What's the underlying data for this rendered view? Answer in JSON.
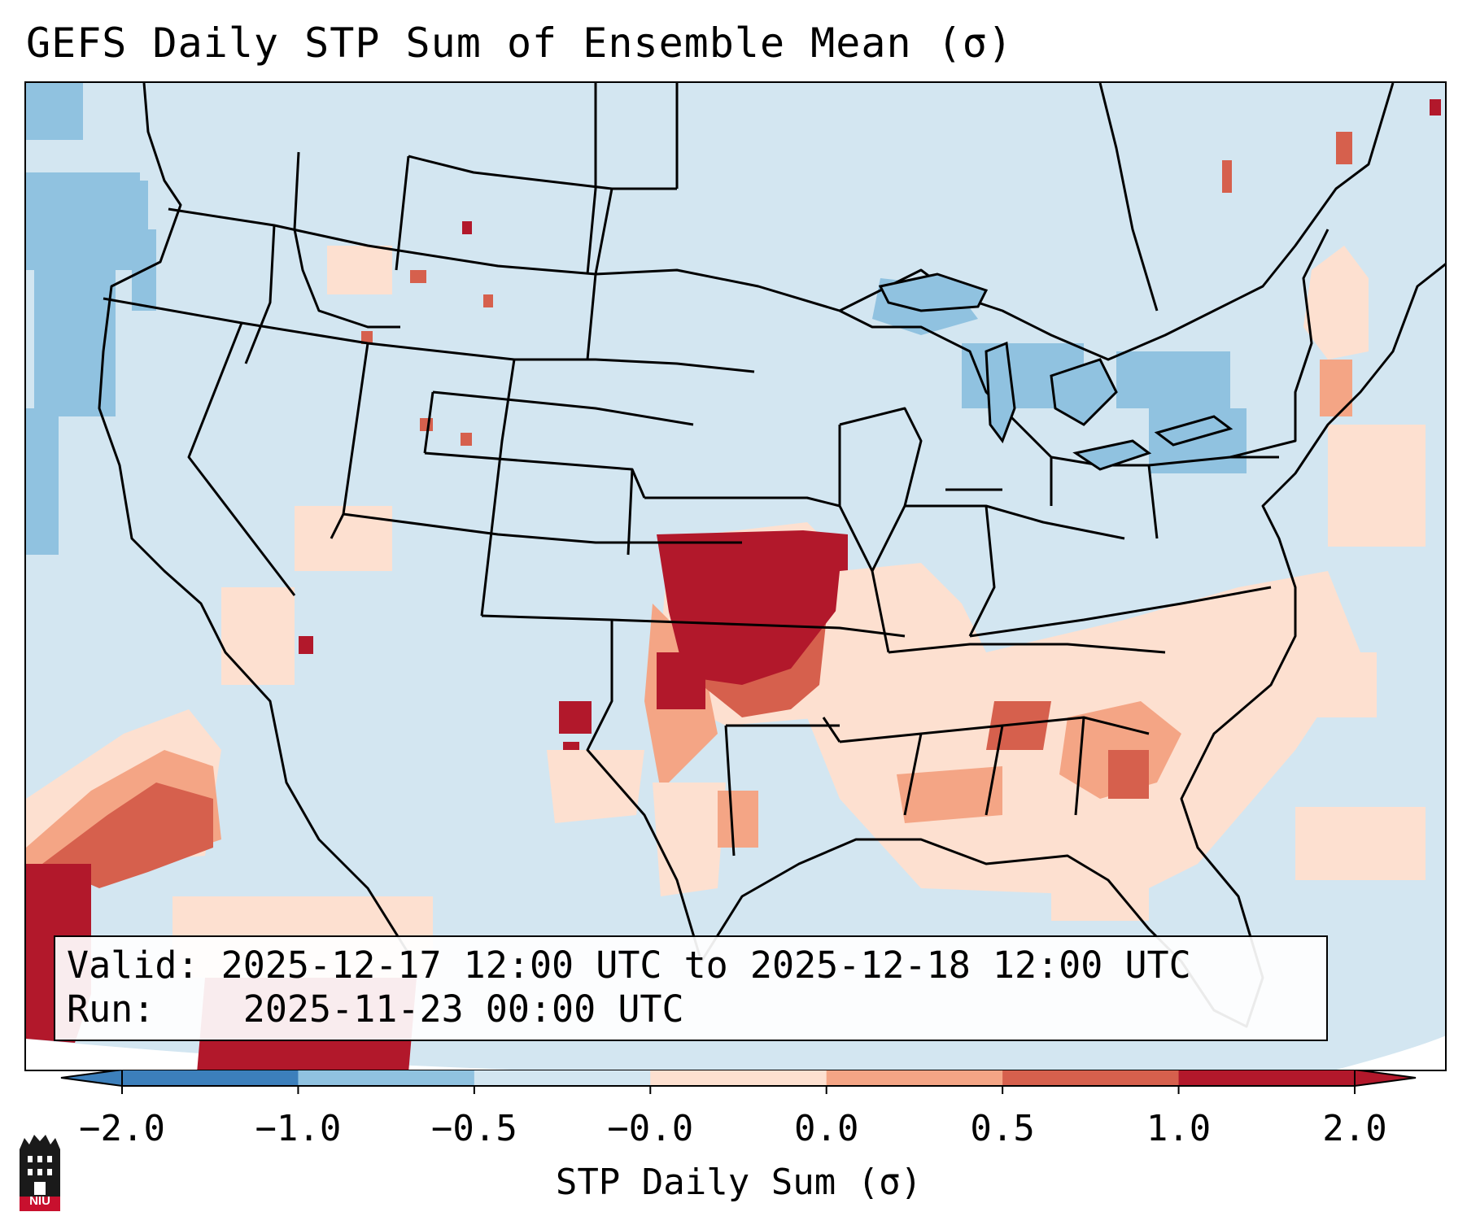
{
  "title": "GEFS Daily STP Sum of Ensemble Mean (σ)",
  "info": {
    "valid_label": "Valid:",
    "valid_value": "2025-12-17 12:00 UTC to 2025-12-18 12:00 UTC",
    "run_label": "Run:",
    "run_value": "2025-11-23 00:00 UTC"
  },
  "colorbar": {
    "label": "STP Daily Sum (σ)",
    "ticks": [
      "−2.0",
      "−1.0",
      "−0.5",
      "−0.0",
      "0.0",
      "0.5",
      "1.0",
      "2.0"
    ],
    "colors": [
      "#3c7fbb",
      "#90c2e0",
      "#d3e6f1",
      "#f8f8f8",
      "#fde0d0",
      "#f4a585",
      "#d6604d",
      "#b2182b"
    ],
    "extend": "both"
  },
  "map": {
    "background": "#d3e6f1",
    "region": "Contiguous United States",
    "features": [
      "state boundaries",
      "coastlines",
      "Great Lakes"
    ]
  },
  "logo": {
    "text": "NIU"
  }
}
